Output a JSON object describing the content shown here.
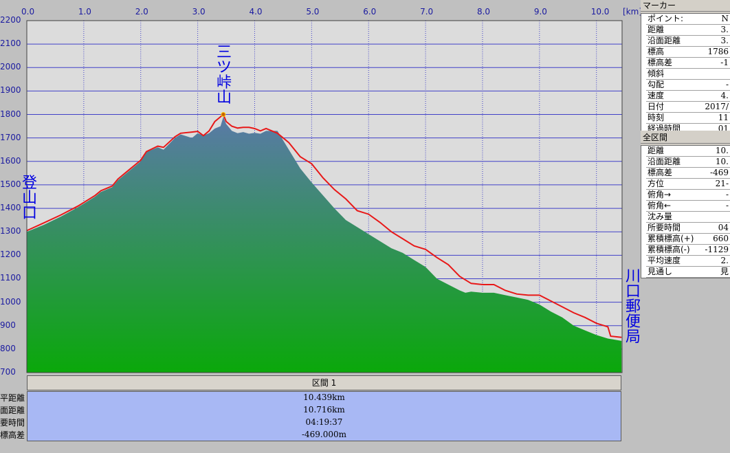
{
  "chart_data": {
    "type": "area",
    "xlabel": "",
    "ylabel": "",
    "xunit": "[km]",
    "xlim": [
      0,
      10.45
    ],
    "ylim": [
      700,
      2200
    ],
    "xticks": [
      "0.0",
      "1.0",
      "2.0",
      "3.0",
      "4.0",
      "5.0",
      "6.0",
      "7.0",
      "8.0",
      "9.0",
      "10.0"
    ],
    "yticks": [
      "2200",
      "2100",
      "2000",
      "1900",
      "1800",
      "1700",
      "1600",
      "1500",
      "1400",
      "1300",
      "1200",
      "1100",
      "1000",
      "900",
      "800",
      "700"
    ],
    "grid": true,
    "series": [
      {
        "kind": "terrain",
        "x": [
          0.0,
          0.3,
          0.6,
          0.9,
          1.2,
          1.3,
          1.4,
          1.5,
          1.6,
          1.8,
          2.0,
          2.1,
          2.3,
          2.4,
          2.6,
          2.7,
          2.9,
          3.0,
          3.1,
          3.2,
          3.3,
          3.4,
          3.45,
          3.5,
          3.6,
          3.7,
          3.8,
          3.9,
          4.0,
          4.1,
          4.2,
          4.4,
          4.6,
          4.8,
          5.0,
          5.2,
          5.4,
          5.6,
          5.8,
          6.0,
          6.2,
          6.4,
          6.6,
          6.8,
          7.0,
          7.2,
          7.4,
          7.6,
          7.7,
          7.8,
          8.0,
          8.2,
          8.4,
          8.6,
          8.8,
          9.0,
          9.2,
          9.4,
          9.6,
          9.8,
          10.0,
          10.2,
          10.44
        ],
        "y": [
          1300,
          1330,
          1365,
          1405,
          1450,
          1470,
          1480,
          1490,
          1520,
          1560,
          1600,
          1640,
          1660,
          1650,
          1700,
          1715,
          1700,
          1720,
          1710,
          1720,
          1740,
          1750,
          1790,
          1760,
          1730,
          1720,
          1725,
          1718,
          1722,
          1718,
          1730,
          1730,
          1650,
          1570,
          1510,
          1455,
          1400,
          1350,
          1320,
          1290,
          1260,
          1230,
          1210,
          1180,
          1150,
          1100,
          1075,
          1050,
          1040,
          1045,
          1040,
          1040,
          1030,
          1020,
          1010,
          990,
          960,
          935,
          900,
          880,
          860,
          845,
          835
        ]
      },
      {
        "kind": "track",
        "color": "#e81818",
        "x": [
          0.0,
          0.3,
          0.6,
          0.9,
          1.2,
          1.3,
          1.4,
          1.5,
          1.6,
          1.8,
          2.0,
          2.1,
          2.3,
          2.4,
          2.6,
          2.7,
          2.9,
          3.0,
          3.1,
          3.2,
          3.3,
          3.4,
          3.45,
          3.5,
          3.6,
          3.7,
          3.8,
          3.9,
          4.0,
          4.1,
          4.2,
          4.4,
          4.6,
          4.8,
          5.0,
          5.2,
          5.4,
          5.6,
          5.8,
          6.0,
          6.2,
          6.4,
          6.6,
          6.8,
          7.0,
          7.2,
          7.4,
          7.6,
          7.7,
          7.8,
          8.0,
          8.2,
          8.4,
          8.6,
          8.8,
          9.0,
          9.2,
          9.4,
          9.6,
          9.8,
          10.0,
          10.2,
          10.25,
          10.44
        ],
        "y": [
          1305,
          1338,
          1372,
          1410,
          1455,
          1475,
          1485,
          1495,
          1525,
          1565,
          1605,
          1642,
          1665,
          1660,
          1705,
          1720,
          1725,
          1728,
          1710,
          1730,
          1770,
          1790,
          1800,
          1770,
          1750,
          1742,
          1745,
          1745,
          1740,
          1730,
          1740,
          1720,
          1680,
          1620,
          1590,
          1530,
          1480,
          1440,
          1390,
          1375,
          1340,
          1300,
          1270,
          1240,
          1225,
          1190,
          1160,
          1110,
          1095,
          1080,
          1075,
          1075,
          1050,
          1035,
          1030,
          1030,
          1005,
          980,
          955,
          935,
          910,
          895,
          855,
          850
        ]
      }
    ]
  },
  "annotations": {
    "peak": "三ツ峠山",
    "start": "登山口",
    "end": "川口郵便局"
  },
  "section": {
    "title": "区間 1",
    "rows": [
      {
        "label": "水平距離",
        "value": "10.439km"
      },
      {
        "label": "沿面距離",
        "value": "10.716km"
      },
      {
        "label": "所要時間",
        "value": "04:19:37"
      },
      {
        "label": "標高差",
        "value": "-469.000m"
      }
    ]
  },
  "marker_panel": {
    "title": "マーカー",
    "rows": [
      {
        "k": "ポイント:",
        "v": "N"
      },
      {
        "k": "距離",
        "v": "3."
      },
      {
        "k": "沿面距離",
        "v": "3."
      },
      {
        "k": "標高",
        "v": "1786"
      },
      {
        "k": "標高差",
        "v": "-1"
      },
      {
        "k": "傾斜",
        "v": ""
      },
      {
        "k": "勾配",
        "v": "-"
      },
      {
        "k": "速度",
        "v": "4."
      },
      {
        "k": "日付",
        "v": "2017/"
      },
      {
        "k": "時刻",
        "v": "11"
      },
      {
        "k": "経過時間",
        "v": "01"
      }
    ]
  },
  "total_panel": {
    "title": "全区間",
    "rows": [
      {
        "k": "距離",
        "v": "10."
      },
      {
        "k": "沿面距離",
        "v": "10."
      },
      {
        "k": "標高差",
        "v": "-469"
      },
      {
        "k": "方位",
        "v": "21-"
      },
      {
        "k": "俯角→",
        "v": "-"
      },
      {
        "k": "俯角←",
        "v": "-"
      },
      {
        "k": "沈み量",
        "v": ""
      },
      {
        "k": "所要時間",
        "v": "04"
      },
      {
        "k": "累積標高(+)",
        "v": "660"
      },
      {
        "k": "累積標高(-)",
        "v": "-1129"
      },
      {
        "k": "平均速度",
        "v": "2."
      },
      {
        "k": "見通し",
        "v": "見"
      }
    ]
  },
  "colors": {
    "plot_bg": "#dcdcdc",
    "grid": "#4040c8",
    "terrain_top": "#5a7aa8",
    "terrain_bottom": "#0aa80a",
    "track": "#e81818",
    "label": "#0000e0"
  }
}
